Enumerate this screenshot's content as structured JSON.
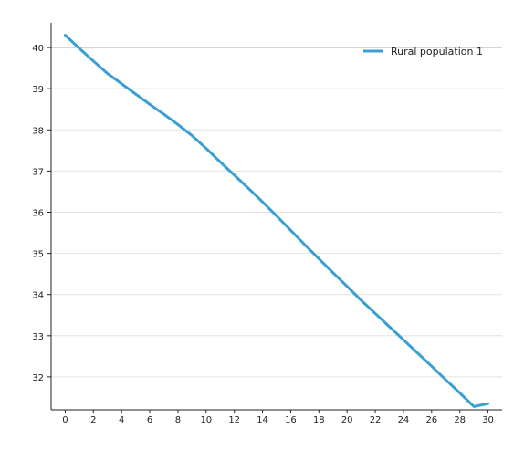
{
  "chart_data": {
    "type": "line",
    "title": "",
    "xlabel": "",
    "ylabel": "",
    "xlim": [
      -1,
      31
    ],
    "ylim": [
      31.2,
      40.6
    ],
    "x_ticks": [
      0,
      2,
      4,
      6,
      8,
      10,
      12,
      14,
      16,
      18,
      20,
      22,
      24,
      26,
      28,
      30
    ],
    "y_ticks": [
      32,
      33,
      34,
      35,
      36,
      37,
      38,
      39,
      40
    ],
    "grid": true,
    "legend_position": "top-right",
    "series": [
      {
        "name": "Rural population 1",
        "color": "#3a9fd1",
        "x": [
          0,
          1,
          2,
          3,
          4,
          5,
          6,
          7,
          8,
          9,
          10,
          11,
          12,
          13,
          14,
          15,
          16,
          17,
          18,
          19,
          20,
          21,
          22,
          23,
          24,
          25,
          26,
          27,
          28,
          29,
          30
        ],
        "values": [
          40.3,
          39.98,
          39.67,
          39.37,
          39.12,
          38.87,
          38.62,
          38.38,
          38.13,
          37.86,
          37.55,
          37.22,
          36.9,
          36.58,
          36.25,
          35.91,
          35.56,
          35.21,
          34.87,
          34.53,
          34.2,
          33.86,
          33.54,
          33.22,
          32.9,
          32.58,
          32.26,
          31.93,
          31.61,
          31.28,
          31.35
        ]
      }
    ]
  }
}
